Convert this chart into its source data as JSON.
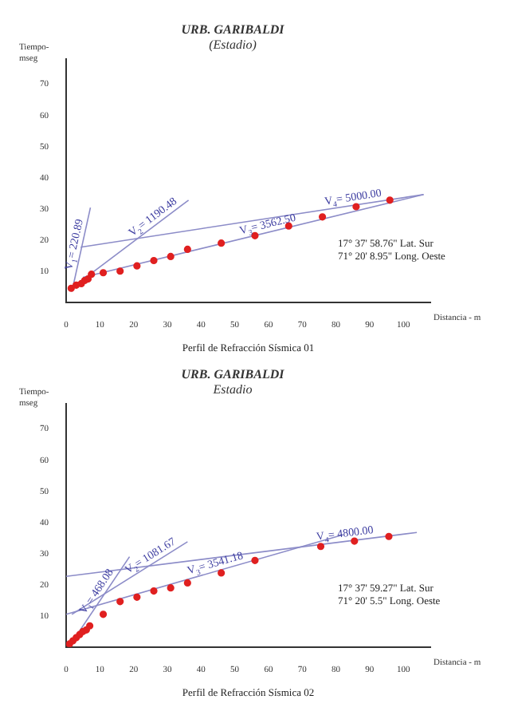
{
  "chart_data": [
    {
      "type": "scatter",
      "title": "URB. GARIBALDI",
      "subtitle": "(Estadio)",
      "xlabel": "Distancia - m",
      "ylabel": "Tiempo-mseg",
      "xlim": [
        0,
        108
      ],
      "ylim": [
        0,
        78
      ],
      "xticks": [
        0,
        10,
        20,
        30,
        40,
        50,
        60,
        70,
        80,
        90,
        100
      ],
      "yticks": [
        10,
        20,
        30,
        40,
        50,
        60,
        70
      ],
      "grid": false,
      "legend": false,
      "marker": "circle",
      "annotations": [
        "17° 37' 58.76\" Lat. Sur",
        "71° 20' 8.95\" Long. Oeste",
        "Perfil de Refracción Sísmica 01"
      ],
      "series": [
        {
          "color": "#e02020",
          "x": [
            1.5,
            3,
            4.5,
            5.5,
            6.5,
            7.5,
            11,
            16,
            21,
            26,
            31,
            36,
            46,
            56,
            66,
            76,
            86,
            96
          ],
          "values": [
            4.5,
            5.5,
            6,
            7,
            7.5,
            9,
            9.5,
            10,
            11.7,
            13.4,
            14.7,
            17,
            19,
            21.4,
            24.5,
            27.4,
            30.7,
            32.8
          ]
        },
        {
          "type": "line",
          "marker": "none",
          "name": "V$_{1}$= 220.89",
          "color": "#8c8cc8",
          "x": [
            1.7,
            7.2
          ],
          "values": [
            3.4,
            30.4
          ]
        },
        {
          "type": "line",
          "marker": "none",
          "name": "V$_{2}$= 1190.48",
          "color": "#8c8cc8",
          "x": [
            4.3,
            36.3
          ],
          "values": [
            6.7,
            32.8
          ]
        },
        {
          "type": "line",
          "marker": "none",
          "name": "V$_{3}$= 3562.50",
          "color": "#8c8cc8",
          "x": [
            5,
            106
          ],
          "values": [
            8,
            34.6
          ]
        },
        {
          "type": "line",
          "marker": "none",
          "name": "V$_{4}$= 5000.00",
          "color": "#8c8cc8",
          "x": [
            4.3,
            106
          ],
          "values": [
            17.7,
            34.6
          ]
        }
      ]
    },
    {
      "type": "scatter",
      "title": "URB. GARIBALDI",
      "subtitle": "Estadio",
      "xlabel": "Distancia - m",
      "ylabel": "Tiempo-mseg",
      "xlim": [
        0,
        108
      ],
      "ylim": [
        0,
        78
      ],
      "xticks": [
        0,
        10,
        20,
        30,
        40,
        50,
        60,
        70,
        80,
        90,
        100
      ],
      "yticks": [
        10,
        20,
        30,
        40,
        50,
        60,
        70
      ],
      "grid": false,
      "legend": false,
      "marker": "circle",
      "annotations": [
        "17° 37' 59.27\" Lat. Sur",
        "71° 20' 5.5\" Long. Oeste",
        "Perfil de Refracción Sísmica 02"
      ],
      "series": [
        {
          "color": "#e02020",
          "x": [
            1,
            2,
            3,
            4,
            5,
            6,
            7,
            11,
            16,
            21,
            26,
            31,
            36,
            46,
            56,
            75.5,
            85.5,
            95.7
          ],
          "values": [
            1,
            2,
            3,
            4,
            5,
            5.5,
            6.8,
            10.5,
            14.6,
            16,
            18,
            19,
            20.6,
            23.8,
            27.8,
            32.3,
            34,
            35.5
          ]
        },
        {
          "type": "line",
          "marker": "none",
          "name": "V$_{1}$= 468.08",
          "color": "#8c8cc8",
          "x": [
            1.7,
            18.8
          ],
          "values": [
            1.5,
            29
          ]
        },
        {
          "type": "line",
          "marker": "none",
          "name": "V$_{2}$= 1081.67",
          "color": "#8c8cc8",
          "x": [
            1.7,
            36
          ],
          "values": [
            10.5,
            33.8
          ]
        },
        {
          "type": "line",
          "marker": "none",
          "name": "V$_{3}$= 3541.18",
          "color": "#8c8cc8",
          "x": [
            0,
            82
          ],
          "values": [
            10.5,
            36
          ]
        },
        {
          "type": "line",
          "marker": "none",
          "name": "V$_{4}$= 4800.00",
          "color": "#8c8cc8",
          "x": [
            0,
            104
          ],
          "values": [
            22.7,
            36.8
          ]
        }
      ]
    }
  ]
}
